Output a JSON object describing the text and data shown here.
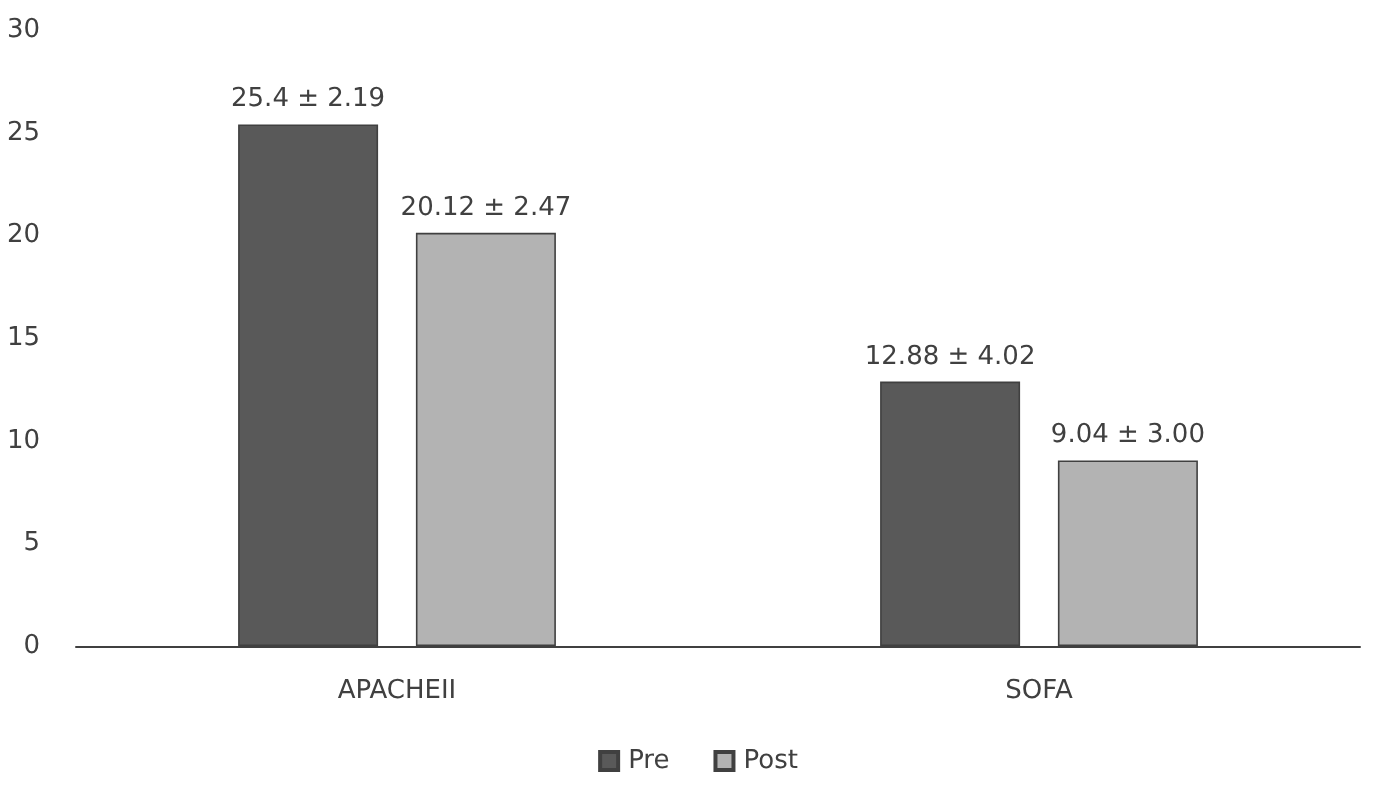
{
  "chart_data": {
    "type": "bar",
    "categories": [
      "APACHEII",
      "SOFA"
    ],
    "series": [
      {
        "name": "Pre",
        "color": "#595959",
        "values": [
          25.4,
          12.88
        ],
        "value_labels": [
          "25.4 ± 2.19",
          "12.88 ± 4.02"
        ]
      },
      {
        "name": "Post",
        "color": "#b3b3b3",
        "values": [
          20.12,
          9.04
        ],
        "value_labels": [
          "20.12 ± 2.47",
          "9.04 ± 3.00"
        ]
      }
    ],
    "ylim": [
      0,
      30
    ],
    "yticks": [
      0,
      5,
      10,
      15,
      20,
      25,
      30
    ],
    "grid": false,
    "legend": "bottom"
  }
}
